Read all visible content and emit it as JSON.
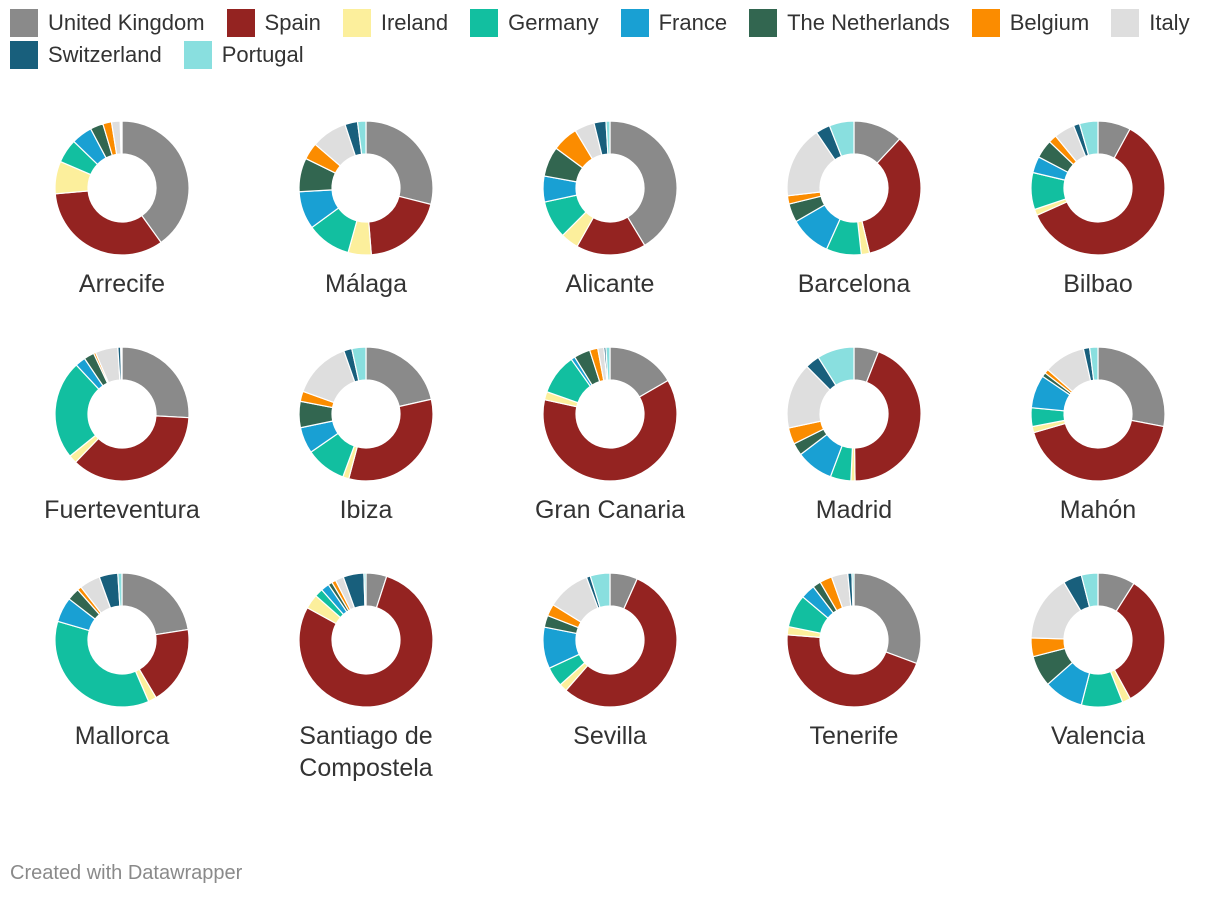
{
  "chart_data": {
    "type": "pie",
    "variant": "donut",
    "legend_position": "top",
    "series": [
      {
        "name": "United Kingdom",
        "color": "#8a8a8a"
      },
      {
        "name": "Spain",
        "color": "#942321"
      },
      {
        "name": "Ireland",
        "color": "#fcef9c"
      },
      {
        "name": "Germany",
        "color": "#12bfa0"
      },
      {
        "name": "France",
        "color": "#19a0d3"
      },
      {
        "name": "The Netherlands",
        "color": "#326650"
      },
      {
        "name": "Belgium",
        "color": "#fb8c00"
      },
      {
        "name": "Italy",
        "color": "#dedede"
      },
      {
        "name": "Switzerland",
        "color": "#185f7c"
      },
      {
        "name": "Portugal",
        "color": "#89dfdf"
      }
    ],
    "charts": [
      {
        "title": "Arrecife",
        "values": [
          38.3,
          32.0,
          7.5,
          5.5,
          4.8,
          3.0,
          2.0,
          2.0,
          0.2,
          0.2
        ]
      },
      {
        "title": "Málaga",
        "values": [
          28.5,
          19.5,
          5.5,
          10.5,
          9.0,
          8.0,
          4.0,
          8.5,
          3.0,
          2.0
        ]
      },
      {
        "title": "Alicante",
        "values": [
          43.0,
          17.5,
          4.5,
          9.5,
          6.5,
          7.5,
          6.5,
          5.0,
          3.0,
          1.0
        ]
      },
      {
        "title": "Barcelona",
        "values": [
          12.0,
          34.5,
          2.0,
          8.5,
          10.0,
          4.5,
          2.0,
          17.5,
          3.5,
          6.0
        ]
      },
      {
        "title": "Bilbao",
        "values": [
          8.0,
          61.0,
          1.5,
          9.0,
          4.0,
          4.5,
          2.0,
          5.0,
          1.5,
          4.5
        ]
      },
      {
        "title": "Fuerteventura",
        "values": [
          26.0,
          36.5,
          2.0,
          24.0,
          2.5,
          2.5,
          0.5,
          5.5,
          0.7,
          0.3
        ]
      },
      {
        "title": "Ibiza",
        "values": [
          22.0,
          33.5,
          1.5,
          10.0,
          6.5,
          6.5,
          2.5,
          14.5,
          2.0,
          3.5
        ]
      },
      {
        "title": "Gran Canaria",
        "values": [
          17.0,
          63.0,
          2.0,
          10.0,
          1.0,
          4.0,
          2.0,
          1.5,
          0.5,
          1.0
        ]
      },
      {
        "title": "Madrid",
        "values": [
          6.0,
          44.0,
          1.0,
          5.0,
          9.0,
          3.0,
          4.0,
          16.0,
          3.5,
          9.0
        ]
      },
      {
        "title": "Mahón",
        "values": [
          28.0,
          42.5,
          1.5,
          4.5,
          8.0,
          1.0,
          1.0,
          10.0,
          1.5,
          2.0
        ]
      },
      {
        "title": "Mallorca",
        "values": [
          22.5,
          19.0,
          2.0,
          36.0,
          6.0,
          3.0,
          1.0,
          5.0,
          4.5,
          1.0
        ]
      },
      {
        "title": "Santiago de Compostela",
        "values": [
          5.0,
          78.0,
          3.5,
          2.0,
          2.0,
          1.0,
          1.0,
          2.0,
          5.0,
          0.5
        ]
      },
      {
        "title": "Sevilla",
        "values": [
          7.0,
          57.5,
          2.0,
          5.0,
          10.5,
          3.0,
          3.0,
          11.0,
          1.0,
          5.0
        ]
      },
      {
        "title": "Tenerife",
        "values": [
          31.0,
          46.0,
          2.0,
          8.0,
          3.5,
          2.0,
          3.0,
          4.0,
          1.0,
          0.5
        ]
      },
      {
        "title": "Valencia",
        "values": [
          9.0,
          33.0,
          2.0,
          10.0,
          9.5,
          7.5,
          4.5,
          16.0,
          4.5,
          4.0
        ]
      }
    ]
  },
  "footer": {
    "credit": "Created with Datawrapper"
  }
}
